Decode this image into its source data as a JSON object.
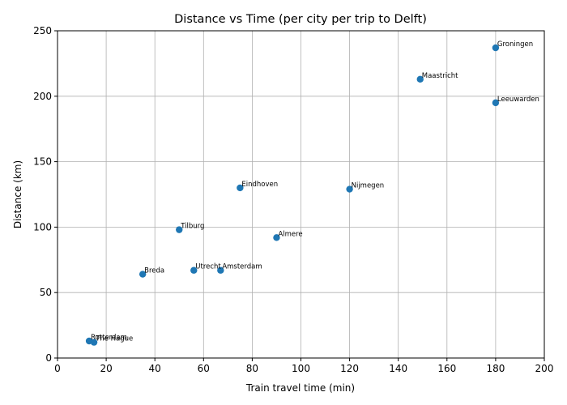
{
  "chart_data": {
    "type": "scatter",
    "title": "Distance vs Time (per city per trip to Delft)",
    "xlabel": "Train travel time (min)",
    "ylabel": "Distance (km)",
    "xlim": [
      0,
      200
    ],
    "ylim": [
      0,
      250
    ],
    "xticks": [
      0,
      20,
      40,
      60,
      80,
      100,
      120,
      140,
      160,
      180,
      200
    ],
    "yticks": [
      0,
      50,
      100,
      150,
      200,
      250
    ],
    "grid": true,
    "color": "#1f77b4",
    "points": [
      {
        "label": "Rotterdam",
        "x": 13,
        "y": 13
      },
      {
        "label": "The Hague",
        "x": 15,
        "y": 12
      },
      {
        "label": "Breda",
        "x": 35,
        "y": 64
      },
      {
        "label": "Tilburg",
        "x": 50,
        "y": 98
      },
      {
        "label": "Utrecht",
        "x": 56,
        "y": 67
      },
      {
        "label": "Amsterdam",
        "x": 67,
        "y": 67
      },
      {
        "label": "Eindhoven",
        "x": 75,
        "y": 130
      },
      {
        "label": "Almere",
        "x": 90,
        "y": 92
      },
      {
        "label": "Nijmegen",
        "x": 120,
        "y": 129
      },
      {
        "label": "Maastricht",
        "x": 149,
        "y": 213
      },
      {
        "label": "Leeuwarden",
        "x": 180,
        "y": 195
      },
      {
        "label": "Groningen",
        "x": 180,
        "y": 237
      }
    ]
  }
}
